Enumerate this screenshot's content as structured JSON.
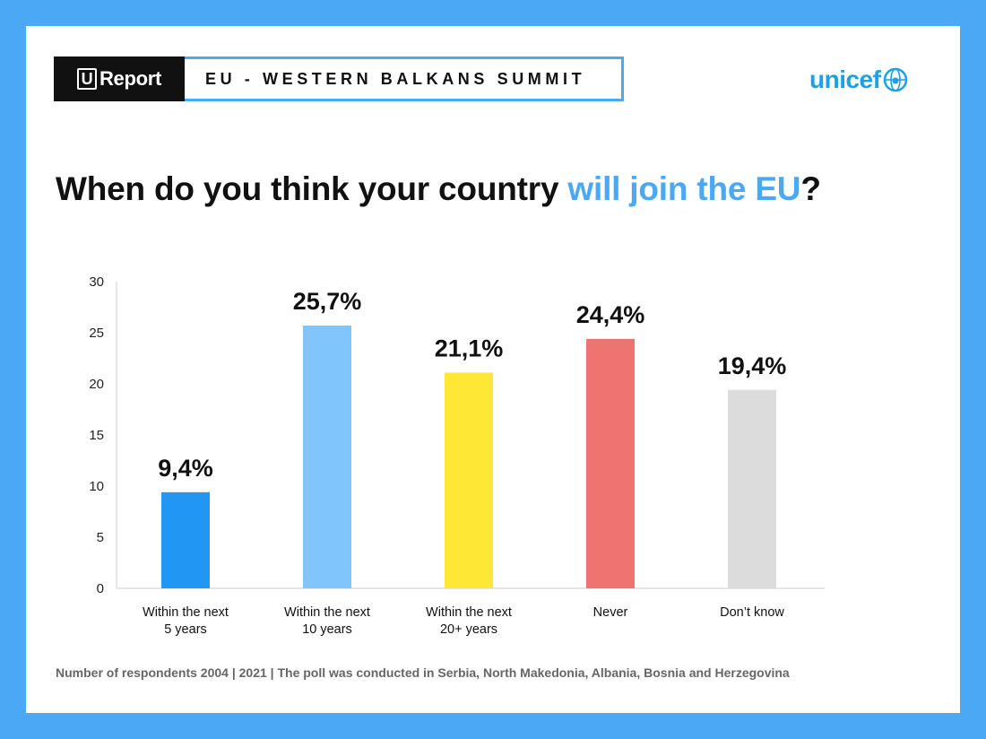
{
  "header": {
    "logo_text": "Report",
    "logo_u": "U",
    "summit_title": "EU - WESTERN BALKANS SUMMIT",
    "partner_logo": "unicef",
    "partner_icon": "unicef-globe-icon"
  },
  "headline": {
    "part1": "When do you think your country ",
    "accent": "will join the EU",
    "part2": "?"
  },
  "colors": {
    "background": "#4aa8f5",
    "accent": "#4aa8f5",
    "bars": [
      "#2196f3",
      "#80c5fc",
      "#ffe835",
      "#ef7371",
      "#dcdcdc"
    ]
  },
  "chart_data": {
    "type": "bar",
    "categories": [
      [
        "Within the next",
        "5 years"
      ],
      [
        "Within the next",
        "10 years"
      ],
      [
        "Within the next",
        "20+ years"
      ],
      [
        "Never"
      ],
      [
        "Don’t know"
      ]
    ],
    "values": [
      9.4,
      25.7,
      21.1,
      24.4,
      19.4
    ],
    "value_labels": [
      "9,4%",
      "25,7%",
      "21,1%",
      "24,4%",
      "19,4%"
    ],
    "ylim": [
      0,
      30
    ],
    "yticks": [
      0,
      5,
      10,
      15,
      20,
      25,
      30
    ],
    "grid": false
  },
  "footnote": "Number of respondents 2004 | 2021 | The poll was conducted in Serbia, North Makedonia, Albania, Bosnia and Herzegovina"
}
